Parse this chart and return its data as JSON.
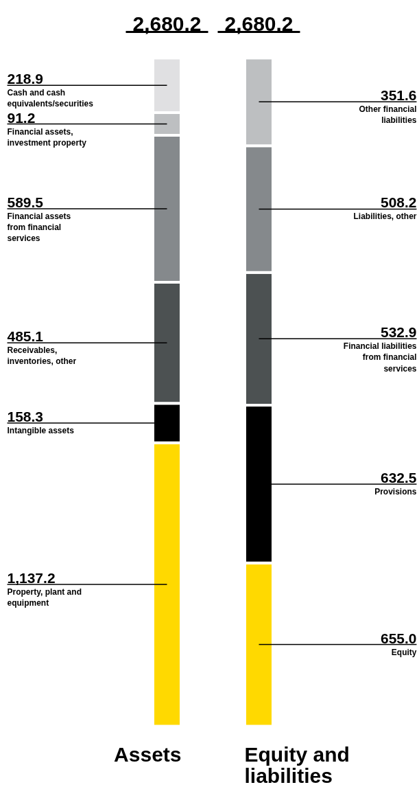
{
  "chart_data": {
    "type": "bar",
    "stacked": true,
    "categories": [
      "Assets",
      "Equity and liabilities"
    ],
    "totals": [
      "2,680.2",
      "2,680.2"
    ],
    "series": [
      {
        "name": "Property, plant and equipment",
        "color": "#ffd900",
        "values": [
          1137.2,
          null
        ],
        "value_labels": [
          "1,137.2",
          null
        ]
      },
      {
        "name": "Equity",
        "color": "#ffd900",
        "values": [
          null,
          655.0
        ],
        "value_labels": [
          null,
          "655.0"
        ]
      },
      {
        "name": "Intangible assets",
        "color": "#000000",
        "values": [
          158.3,
          null
        ],
        "value_labels": [
          "158.3",
          null
        ]
      },
      {
        "name": "Provisions",
        "color": "#000000",
        "values": [
          null,
          632.5
        ],
        "value_labels": [
          null,
          "632.5"
        ]
      },
      {
        "name": "Receivables, inventories, other",
        "color": "#4c5152",
        "values": [
          485.1,
          null
        ],
        "value_labels": [
          "485.1",
          null
        ]
      },
      {
        "name": "Financial liabilities from financial services",
        "color": "#4c5152",
        "values": [
          null,
          532.9
        ],
        "value_labels": [
          null,
          "532.9"
        ]
      },
      {
        "name": "Financial assets from financial services",
        "color": "#85898c",
        "values": [
          589.5,
          null
        ],
        "value_labels": [
          "589.5",
          null
        ]
      },
      {
        "name": "Liabilities, other",
        "color": "#85898c",
        "values": [
          null,
          508.2
        ],
        "value_labels": [
          null,
          "508.2"
        ]
      },
      {
        "name": "Financial assets, investment property",
        "color": "#bdbfc1",
        "values": [
          91.2,
          null
        ],
        "value_labels": [
          "91.2",
          null
        ]
      },
      {
        "name": "Other financial liabilities",
        "color": "#bdbfc1",
        "values": [
          null,
          351.6
        ],
        "value_labels": [
          null,
          "351.6"
        ]
      },
      {
        "name": "Cash and cash equivalents/securities",
        "color": "#e0e0e2",
        "values": [
          218.9,
          null
        ],
        "value_labels": [
          "218.9",
          null
        ]
      }
    ]
  }
}
